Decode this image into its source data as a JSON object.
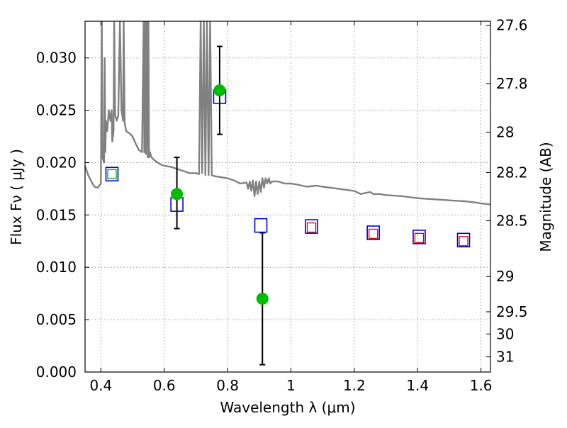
{
  "chart_data": {
    "type": "scatter",
    "title": "",
    "xlabel": "Wavelength  λ (μm)",
    "ylabel": "Flux  Fν  ( μJy )",
    "y2label": "Magnitude (AB)",
    "xlim": [
      0.35,
      1.63
    ],
    "ylim": [
      0.0,
      0.0335
    ],
    "grid": true,
    "x_ticks": [
      "0.4",
      "0.6",
      "0.8",
      "1",
      "1.2",
      "1.4",
      "1.6"
    ],
    "x_tick_values": [
      0.4,
      0.6,
      0.8,
      1.0,
      1.2,
      1.4,
      1.6
    ],
    "y_ticks": [
      "0.000",
      "0.005",
      "0.010",
      "0.015",
      "0.020",
      "0.025",
      "0.030"
    ],
    "y_tick_values": [
      0.0,
      0.005,
      0.01,
      0.015,
      0.02,
      0.025,
      0.03
    ],
    "y2_ticks": [
      "27.6",
      "27.8",
      "28",
      "28.2",
      "28.5",
      "29",
      "29.5",
      "30",
      "31"
    ],
    "y2_tick_values": [
      27.6,
      27.8,
      28.0,
      28.2,
      28.5,
      29.0,
      29.5,
      30.0,
      31.0
    ],
    "colors": {
      "spectrum": "#808080",
      "observed": "#00bb00",
      "model_blue": "#0000dd",
      "model_green": "#00aa00",
      "model_red": "#dd0000",
      "errorbar": "#000000",
      "grid": "#999999"
    },
    "series": [
      {
        "kind": "spectrum",
        "x": [
          0.35,
          0.36,
          0.37,
          0.38,
          0.39,
          0.4,
          0.403,
          0.405,
          0.41,
          0.412,
          0.414,
          0.416,
          0.42,
          0.425,
          0.43,
          0.434,
          0.436,
          0.44,
          0.442,
          0.445,
          0.45,
          0.455,
          0.46,
          0.465,
          0.47,
          0.472,
          0.475,
          0.478,
          0.48,
          0.49,
          0.5,
          0.51,
          0.52,
          0.53,
          0.535,
          0.537,
          0.54,
          0.542,
          0.545,
          0.548,
          0.55,
          0.552,
          0.555,
          0.56,
          0.57,
          0.58,
          0.59,
          0.6,
          0.62,
          0.64,
          0.66,
          0.68,
          0.7,
          0.71,
          0.715,
          0.72,
          0.725,
          0.73,
          0.735,
          0.74,
          0.745,
          0.75,
          0.76,
          0.78,
          0.8,
          0.82,
          0.84,
          0.86,
          0.865,
          0.87,
          0.875,
          0.88,
          0.885,
          0.89,
          0.895,
          0.9,
          0.905,
          0.91,
          0.915,
          0.92,
          0.925,
          0.93,
          0.935,
          0.94,
          0.95,
          0.96,
          0.98,
          1.0,
          1.02,
          1.05,
          1.08,
          1.1,
          1.15,
          1.2,
          1.22,
          1.25,
          1.26,
          1.28,
          1.3,
          1.35,
          1.4,
          1.45,
          1.5,
          1.55,
          1.58,
          1.6,
          1.63
        ],
        "y": [
          0.0197,
          0.0188,
          0.0182,
          0.0177,
          0.0176,
          0.018,
          0.0335,
          0.0205,
          0.02,
          0.03,
          0.021,
          0.024,
          0.023,
          0.025,
          0.024,
          0.025,
          0.022,
          0.023,
          0.0335,
          0.0245,
          0.024,
          0.0245,
          0.0335,
          0.025,
          0.024,
          0.0335,
          0.0238,
          0.0233,
          0.023,
          0.0228,
          0.0225,
          0.0218,
          0.0212,
          0.021,
          0.0335,
          0.021,
          0.0335,
          0.0208,
          0.0335,
          0.0205,
          0.0335,
          0.0205,
          0.021,
          0.0205,
          0.0202,
          0.02,
          0.0198,
          0.0197,
          0.0196,
          0.0194,
          0.0192,
          0.019,
          0.019,
          0.0189,
          0.0335,
          0.019,
          0.0335,
          0.0188,
          0.0335,
          0.0188,
          0.0335,
          0.0188,
          0.0187,
          0.0186,
          0.0185,
          0.0183,
          0.018,
          0.0181,
          0.0175,
          0.0182,
          0.0173,
          0.0183,
          0.0168,
          0.0182,
          0.017,
          0.0182,
          0.0172,
          0.0185,
          0.0176,
          0.0185,
          0.018,
          0.0185,
          0.018,
          0.0182,
          0.0182,
          0.0182,
          0.018,
          0.018,
          0.0179,
          0.0177,
          0.0178,
          0.0177,
          0.0175,
          0.0173,
          0.017,
          0.0172,
          0.017,
          0.017,
          0.0169,
          0.0168,
          0.0166,
          0.0165,
          0.0164,
          0.0163,
          0.0162,
          0.0161,
          0.016
        ]
      },
      {
        "kind": "observed",
        "x": [
          0.64,
          0.775,
          0.91
        ],
        "y": [
          0.017,
          0.0269,
          0.007
        ],
        "y_err_low": [
          0.0137,
          0.0227,
          0.0007
        ],
        "y_err_high": [
          0.0205,
          0.0311,
          0.0133
        ]
      },
      {
        "kind": "model_squares_blue",
        "x": [
          0.435,
          0.64,
          0.775,
          0.905,
          1.065,
          1.26,
          1.405,
          1.545
        ],
        "y": [
          0.0189,
          0.016,
          0.0263,
          0.014,
          0.0139,
          0.0133,
          0.0129,
          0.0126
        ]
      },
      {
        "kind": "model_squares_green",
        "x": [
          0.435
        ],
        "y": [
          0.0189
        ]
      },
      {
        "kind": "model_squares_red",
        "x": [
          1.065,
          1.26,
          1.405,
          1.545
        ],
        "y": [
          0.0138,
          0.0132,
          0.0128,
          0.0125
        ]
      }
    ]
  }
}
